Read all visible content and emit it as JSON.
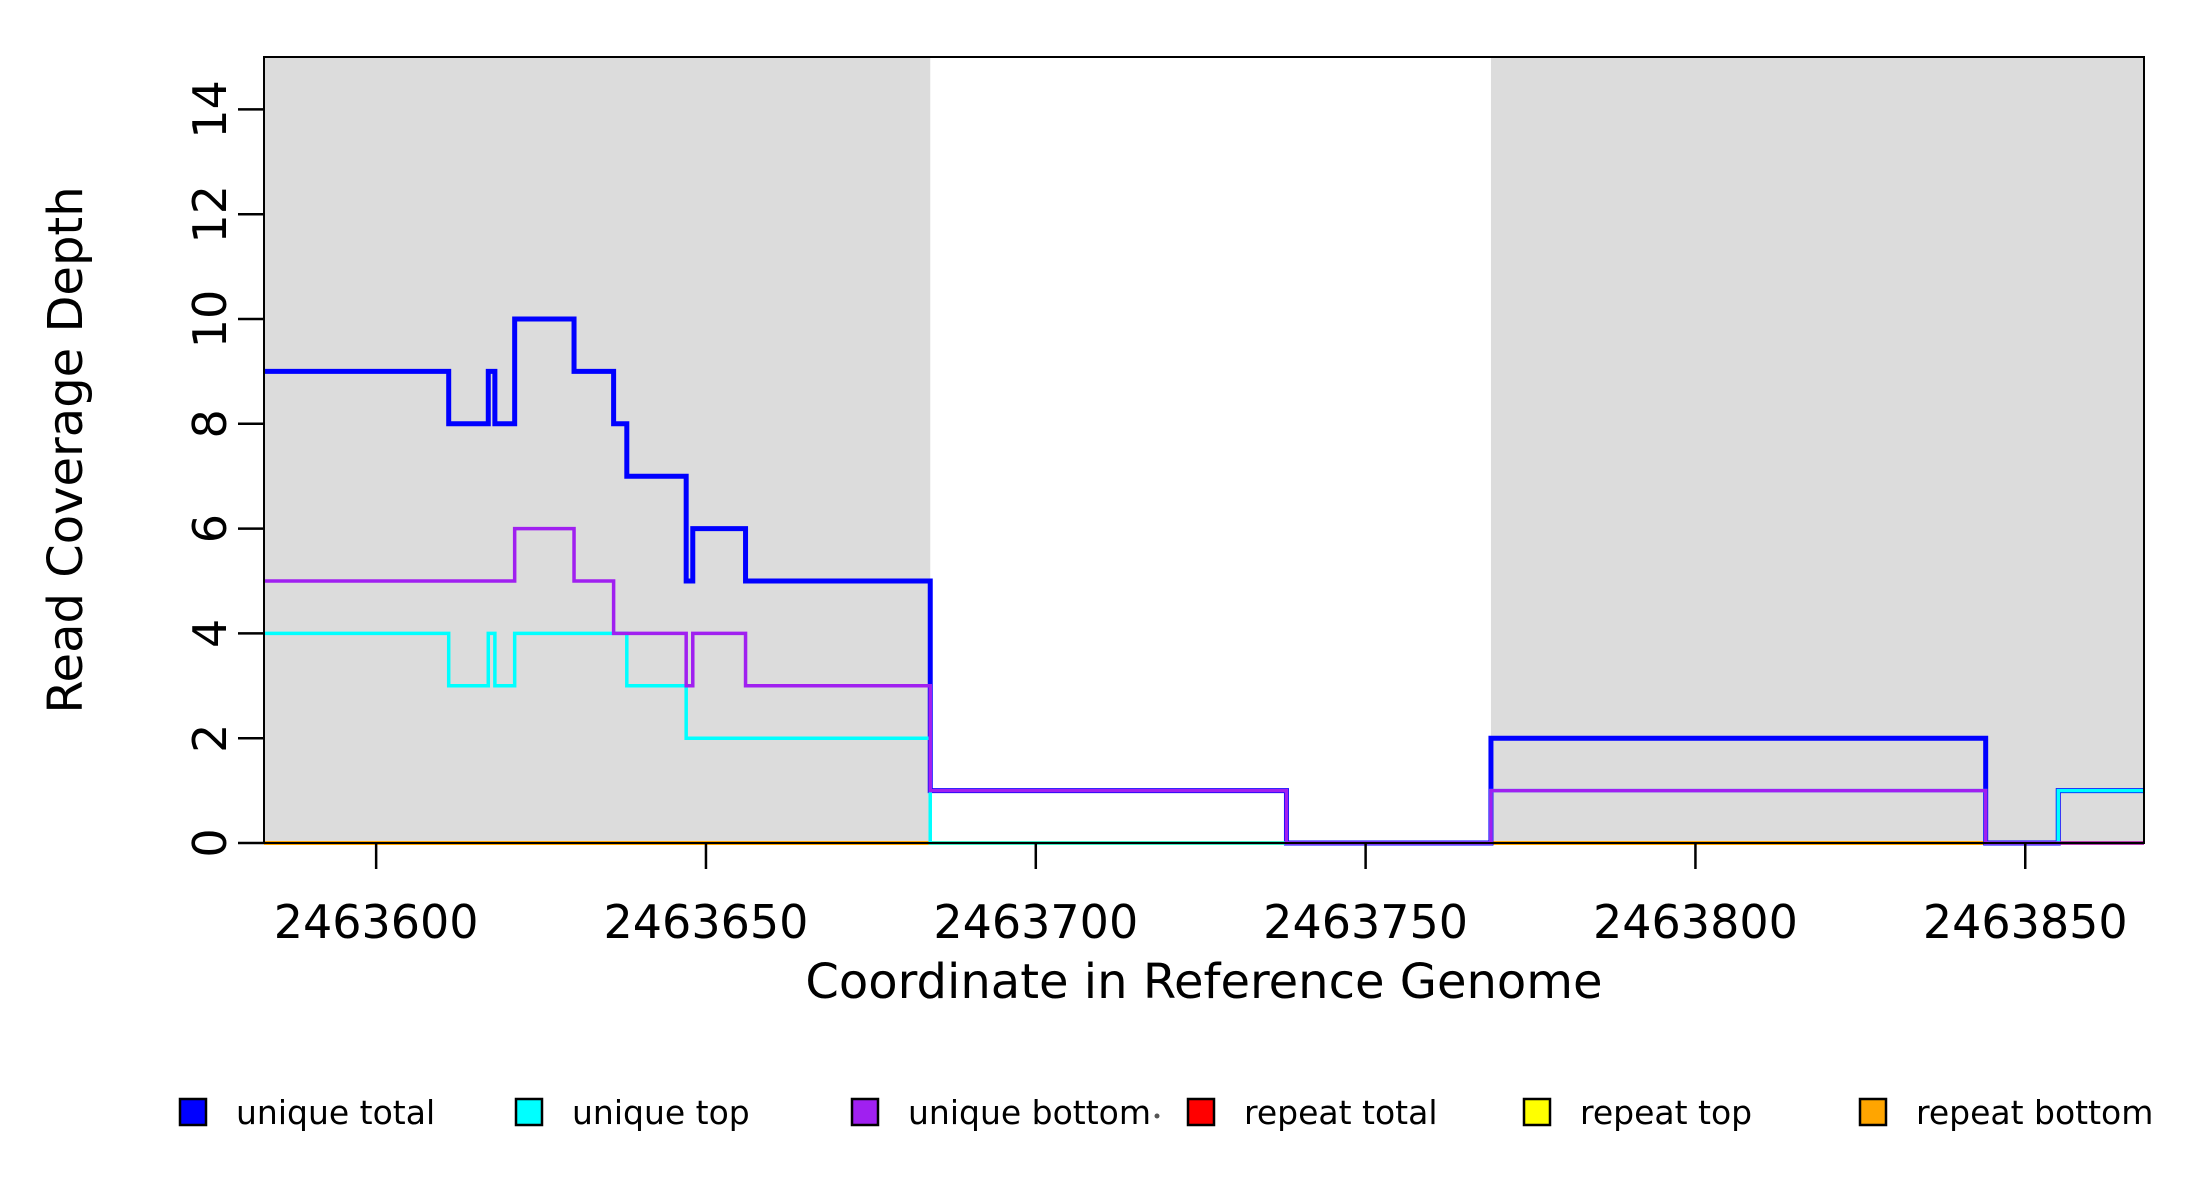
{
  "page": {
    "background": "#FFFFFF"
  },
  "chart_data": {
    "type": "line",
    "subtype": "step",
    "title": "",
    "xlabel": "Coordinate in Reference Genome",
    "ylabel": "Read Coverage Depth",
    "xlim": [
      2463583,
      2463868
    ],
    "ylim": [
      0,
      15
    ],
    "x_ticks": [
      2463600,
      2463650,
      2463700,
      2463750,
      2463800,
      2463850
    ],
    "y_ticks": [
      0,
      2,
      4,
      6,
      8,
      10,
      12,
      14
    ],
    "grid": false,
    "legend_position": "bottom",
    "plot_background": "#FFFFFF",
    "shaded_region_color": "#DCDCDC",
    "shaded_regions": [
      [
        2463583,
        2463684
      ],
      [
        2463769,
        2463868
      ]
    ],
    "draw_order": [
      "repeat total",
      "repeat top",
      "repeat bottom",
      "unique total",
      "unique top",
      "unique bottom"
    ],
    "series": [
      {
        "name": "unique total",
        "color": "#0000FF",
        "line_width": 5,
        "steps": [
          [
            2463583,
            9
          ],
          [
            2463611,
            8
          ],
          [
            2463617,
            9
          ],
          [
            2463618,
            8
          ],
          [
            2463621,
            10
          ],
          [
            2463630,
            9
          ],
          [
            2463636,
            8
          ],
          [
            2463638,
            7
          ],
          [
            2463647,
            5
          ],
          [
            2463648,
            6
          ],
          [
            2463656,
            5
          ],
          [
            2463684,
            1
          ],
          [
            2463738,
            0
          ],
          [
            2463769,
            2
          ],
          [
            2463844,
            0
          ],
          [
            2463855,
            1
          ]
        ]
      },
      {
        "name": "unique top",
        "color": "#00FFFF",
        "line_width": 3.5,
        "steps": [
          [
            2463583,
            4
          ],
          [
            2463611,
            3
          ],
          [
            2463617,
            4
          ],
          [
            2463618,
            3
          ],
          [
            2463621,
            4
          ],
          [
            2463638,
            3
          ],
          [
            2463647,
            2
          ],
          [
            2463684,
            0
          ],
          [
            2463769,
            1
          ],
          [
            2463844,
            0
          ],
          [
            2463855,
            1
          ]
        ]
      },
      {
        "name": "unique bottom",
        "color": "#A020F0",
        "line_width": 3.5,
        "steps": [
          [
            2463583,
            5
          ],
          [
            2463621,
            6
          ],
          [
            2463630,
            5
          ],
          [
            2463636,
            4
          ],
          [
            2463647,
            3
          ],
          [
            2463648,
            4
          ],
          [
            2463656,
            3
          ],
          [
            2463684,
            1
          ],
          [
            2463738,
            0
          ],
          [
            2463769,
            1
          ],
          [
            2463844,
            0
          ]
        ]
      },
      {
        "name": "repeat total",
        "color": "#FF0000",
        "line_width": 3.5,
        "steps": [
          [
            2463583,
            0
          ]
        ]
      },
      {
        "name": "repeat top",
        "color": "#FFFF00",
        "line_width": 3.5,
        "steps": [
          [
            2463583,
            0
          ]
        ]
      },
      {
        "name": "repeat bottom",
        "color": "#FFA500",
        "line_width": 4,
        "steps": [
          [
            2463583,
            0
          ]
        ]
      }
    ],
    "legend": {
      "swatch_border": "#000000",
      "entries": [
        "unique total",
        "unique top",
        "unique bottom",
        "repeat total",
        "repeat top",
        "repeat bottom"
      ]
    }
  }
}
